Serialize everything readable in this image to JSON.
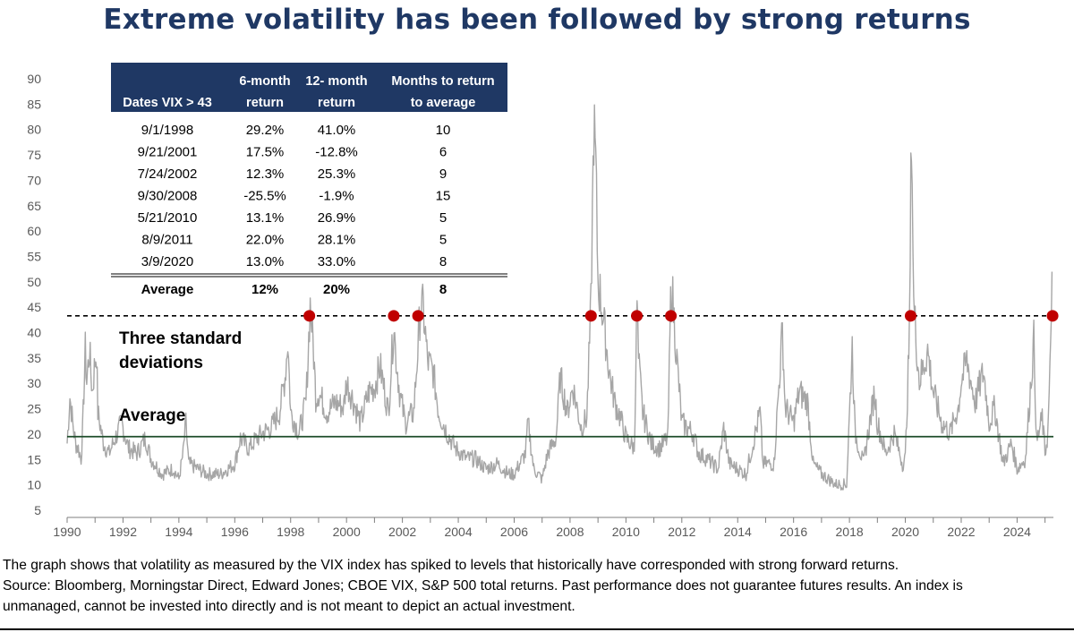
{
  "chart_data": {
    "type": "line",
    "title": "Extreme volatility has been followed by strong returns",
    "xlabel": "",
    "ylabel": "",
    "xlim": [
      1990,
      2025.3
    ],
    "ylim": [
      5,
      90
    ],
    "x_ticks": [
      "1990",
      "1992",
      "1994",
      "1996",
      "1998",
      "2000",
      "2002",
      "2004",
      "2006",
      "2008",
      "2010",
      "2012",
      "2014",
      "2016",
      "2018",
      "2020",
      "2022",
      "2024"
    ],
    "y_ticks": [
      "5",
      "10",
      "15",
      "20",
      "25",
      "30",
      "35",
      "40",
      "45",
      "50",
      "55",
      "60",
      "65",
      "70",
      "75",
      "80",
      "85",
      "90"
    ],
    "grid": false,
    "series_color": "#a6a6a6",
    "series_points": [
      [
        1990.0,
        18
      ],
      [
        1990.1,
        27
      ],
      [
        1990.2,
        22
      ],
      [
        1990.3,
        18
      ],
      [
        1990.4,
        17
      ],
      [
        1990.5,
        15
      ],
      [
        1990.55,
        20
      ],
      [
        1990.6,
        28
      ],
      [
        1990.65,
        36
      ],
      [
        1990.7,
        30
      ],
      [
        1990.8,
        36
      ],
      [
        1990.9,
        28
      ],
      [
        1991.0,
        34
      ],
      [
        1991.05,
        36
      ],
      [
        1991.1,
        24
      ],
      [
        1991.3,
        18
      ],
      [
        1991.5,
        16
      ],
      [
        1991.8,
        20
      ],
      [
        1991.95,
        22
      ],
      [
        1992.2,
        17
      ],
      [
        1992.5,
        16
      ],
      [
        1992.8,
        19
      ],
      [
        1993.0,
        15
      ],
      [
        1993.4,
        12
      ],
      [
        1993.8,
        13
      ],
      [
        1994.0,
        11
      ],
      [
        1994.15,
        16
      ],
      [
        1994.25,
        22
      ],
      [
        1994.35,
        14
      ],
      [
        1994.7,
        13
      ],
      [
        1995.0,
        12
      ],
      [
        1995.5,
        12
      ],
      [
        1996.0,
        14
      ],
      [
        1996.2,
        19
      ],
      [
        1996.5,
        17
      ],
      [
        1996.8,
        19
      ],
      [
        1997.0,
        20
      ],
      [
        1997.3,
        21
      ],
      [
        1997.6,
        24
      ],
      [
        1997.8,
        31
      ],
      [
        1997.9,
        38
      ],
      [
        1998.0,
        24
      ],
      [
        1998.3,
        20
      ],
      [
        1998.55,
        26
      ],
      [
        1998.7,
        45
      ],
      [
        1998.8,
        38
      ],
      [
        1998.9,
        27
      ],
      [
        1999.0,
        28
      ],
      [
        1999.3,
        24
      ],
      [
        1999.6,
        26
      ],
      [
        1999.9,
        25
      ],
      [
        2000.0,
        30
      ],
      [
        2000.2,
        27
      ],
      [
        2000.5,
        22
      ],
      [
        2000.8,
        28
      ],
      [
        2001.0,
        29
      ],
      [
        2001.2,
        33
      ],
      [
        2001.5,
        24
      ],
      [
        2001.7,
        42
      ],
      [
        2001.75,
        36
      ],
      [
        2001.9,
        28
      ],
      [
        2002.1,
        22
      ],
      [
        2002.4,
        24
      ],
      [
        2002.55,
        36
      ],
      [
        2002.65,
        45
      ],
      [
        2002.75,
        44
      ],
      [
        2002.9,
        34
      ],
      [
        2003.1,
        32
      ],
      [
        2003.3,
        24
      ],
      [
        2003.6,
        20
      ],
      [
        2003.9,
        17
      ],
      [
        2004.3,
        15
      ],
      [
        2004.6,
        15
      ],
      [
        2005.0,
        13
      ],
      [
        2005.4,
        14
      ],
      [
        2005.8,
        12
      ],
      [
        2006.0,
        12
      ],
      [
        2006.4,
        16
      ],
      [
        2006.5,
        22
      ],
      [
        2006.7,
        13
      ],
      [
        2007.0,
        11
      ],
      [
        2007.2,
        16
      ],
      [
        2007.5,
        19
      ],
      [
        2007.65,
        31
      ],
      [
        2007.9,
        24
      ],
      [
        2008.1,
        29
      ],
      [
        2008.4,
        21
      ],
      [
        2008.6,
        23
      ],
      [
        2008.75,
        45
      ],
      [
        2008.85,
        80
      ],
      [
        2008.92,
        72
      ],
      [
        2009.0,
        50
      ],
      [
        2009.2,
        42
      ],
      [
        2009.4,
        32
      ],
      [
        2009.6,
        26
      ],
      [
        2009.8,
        23
      ],
      [
        2010.0,
        19
      ],
      [
        2010.3,
        17
      ],
      [
        2010.4,
        46
      ],
      [
        2010.45,
        34
      ],
      [
        2010.6,
        24
      ],
      [
        2010.9,
        18
      ],
      [
        2011.2,
        17
      ],
      [
        2011.5,
        19
      ],
      [
        2011.6,
        45
      ],
      [
        2011.65,
        48
      ],
      [
        2011.8,
        36
      ],
      [
        2012.0,
        22
      ],
      [
        2012.4,
        20
      ],
      [
        2012.6,
        16
      ],
      [
        2012.9,
        15
      ],
      [
        2013.3,
        13
      ],
      [
        2013.5,
        21
      ],
      [
        2013.7,
        14
      ],
      [
        2014.0,
        13
      ],
      [
        2014.3,
        12
      ],
      [
        2014.8,
        24
      ],
      [
        2014.9,
        14
      ],
      [
        2015.3,
        14
      ],
      [
        2015.6,
        40
      ],
      [
        2015.7,
        25
      ],
      [
        2016.0,
        22
      ],
      [
        2016.2,
        28
      ],
      [
        2016.5,
        26
      ],
      [
        2016.7,
        14
      ],
      [
        2017.0,
        12
      ],
      [
        2017.5,
        10
      ],
      [
        2017.9,
        10
      ],
      [
        2018.1,
        37
      ],
      [
        2018.2,
        20
      ],
      [
        2018.5,
        14
      ],
      [
        2018.9,
        28
      ],
      [
        2019.0,
        22
      ],
      [
        2019.3,
        16
      ],
      [
        2019.6,
        20
      ],
      [
        2019.9,
        14
      ],
      [
        2020.0,
        15
      ],
      [
        2020.15,
        40
      ],
      [
        2020.22,
        82
      ],
      [
        2020.3,
        45
      ],
      [
        2020.5,
        30
      ],
      [
        2020.8,
        36
      ],
      [
        2021.0,
        28
      ],
      [
        2021.3,
        22
      ],
      [
        2021.6,
        20
      ],
      [
        2021.9,
        25
      ],
      [
        2022.0,
        30
      ],
      [
        2022.2,
        34
      ],
      [
        2022.5,
        26
      ],
      [
        2022.8,
        32
      ],
      [
        2023.0,
        22
      ],
      [
        2023.2,
        25
      ],
      [
        2023.5,
        14
      ],
      [
        2023.8,
        18
      ],
      [
        2024.0,
        13
      ],
      [
        2024.3,
        15
      ],
      [
        2024.6,
        38
      ],
      [
        2024.7,
        18
      ],
      [
        2024.9,
        23
      ],
      [
        2025.0,
        16
      ],
      [
        2025.1,
        20
      ],
      [
        2025.2,
        35
      ],
      [
        2025.25,
        52
      ]
    ],
    "reference_lines": [
      {
        "name": "three_sd",
        "label": "Three standard deviations",
        "value": 43.3,
        "style": "dashed",
        "color": "#000000"
      },
      {
        "name": "average",
        "label": "Average",
        "value": 19.5,
        "style": "solid",
        "color": "#1e4d2b"
      }
    ],
    "markers": {
      "color": "#c00000",
      "value": 43.3,
      "x": [
        1998.67,
        2001.69,
        2002.56,
        2008.75,
        2010.39,
        2011.61,
        2020.19,
        2025.27
      ]
    },
    "table": {
      "header_bg": "#1f3864",
      "headers": [
        [
          "Dates VIX > 43"
        ],
        [
          "6-month",
          "return"
        ],
        [
          "12- month",
          "return"
        ],
        [
          "Months to return",
          "to average"
        ]
      ],
      "rows": [
        [
          "9/1/1998",
          "29.2%",
          "41.0%",
          "10"
        ],
        [
          "9/21/2001",
          "17.5%",
          "-12.8%",
          "6"
        ],
        [
          "7/24/2002",
          "12.3%",
          "25.3%",
          "9"
        ],
        [
          "9/30/2008",
          "-25.5%",
          "-1.9%",
          "15"
        ],
        [
          "5/21/2010",
          "13.1%",
          "26.9%",
          "5"
        ],
        [
          "8/9/2011",
          "22.0%",
          "28.1%",
          "5"
        ],
        [
          "3/9/2020",
          "13.0%",
          "33.0%",
          "8"
        ]
      ],
      "footer": [
        "Average",
        "12%",
        "20%",
        "8"
      ]
    }
  },
  "footnote": {
    "line1": "The graph shows that volatility as measured by the VIX index has spiked to levels that historically have corresponded with strong forward returns.",
    "line2": "Source: Bloomberg, Morningstar Direct, Edward Jones; CBOE VIX, S&P 500 total returns. Past performance does not guarantee futures results. An index is",
    "line3": "unmanaged, cannot be invested into directly and is not meant to depict an actual investment."
  }
}
